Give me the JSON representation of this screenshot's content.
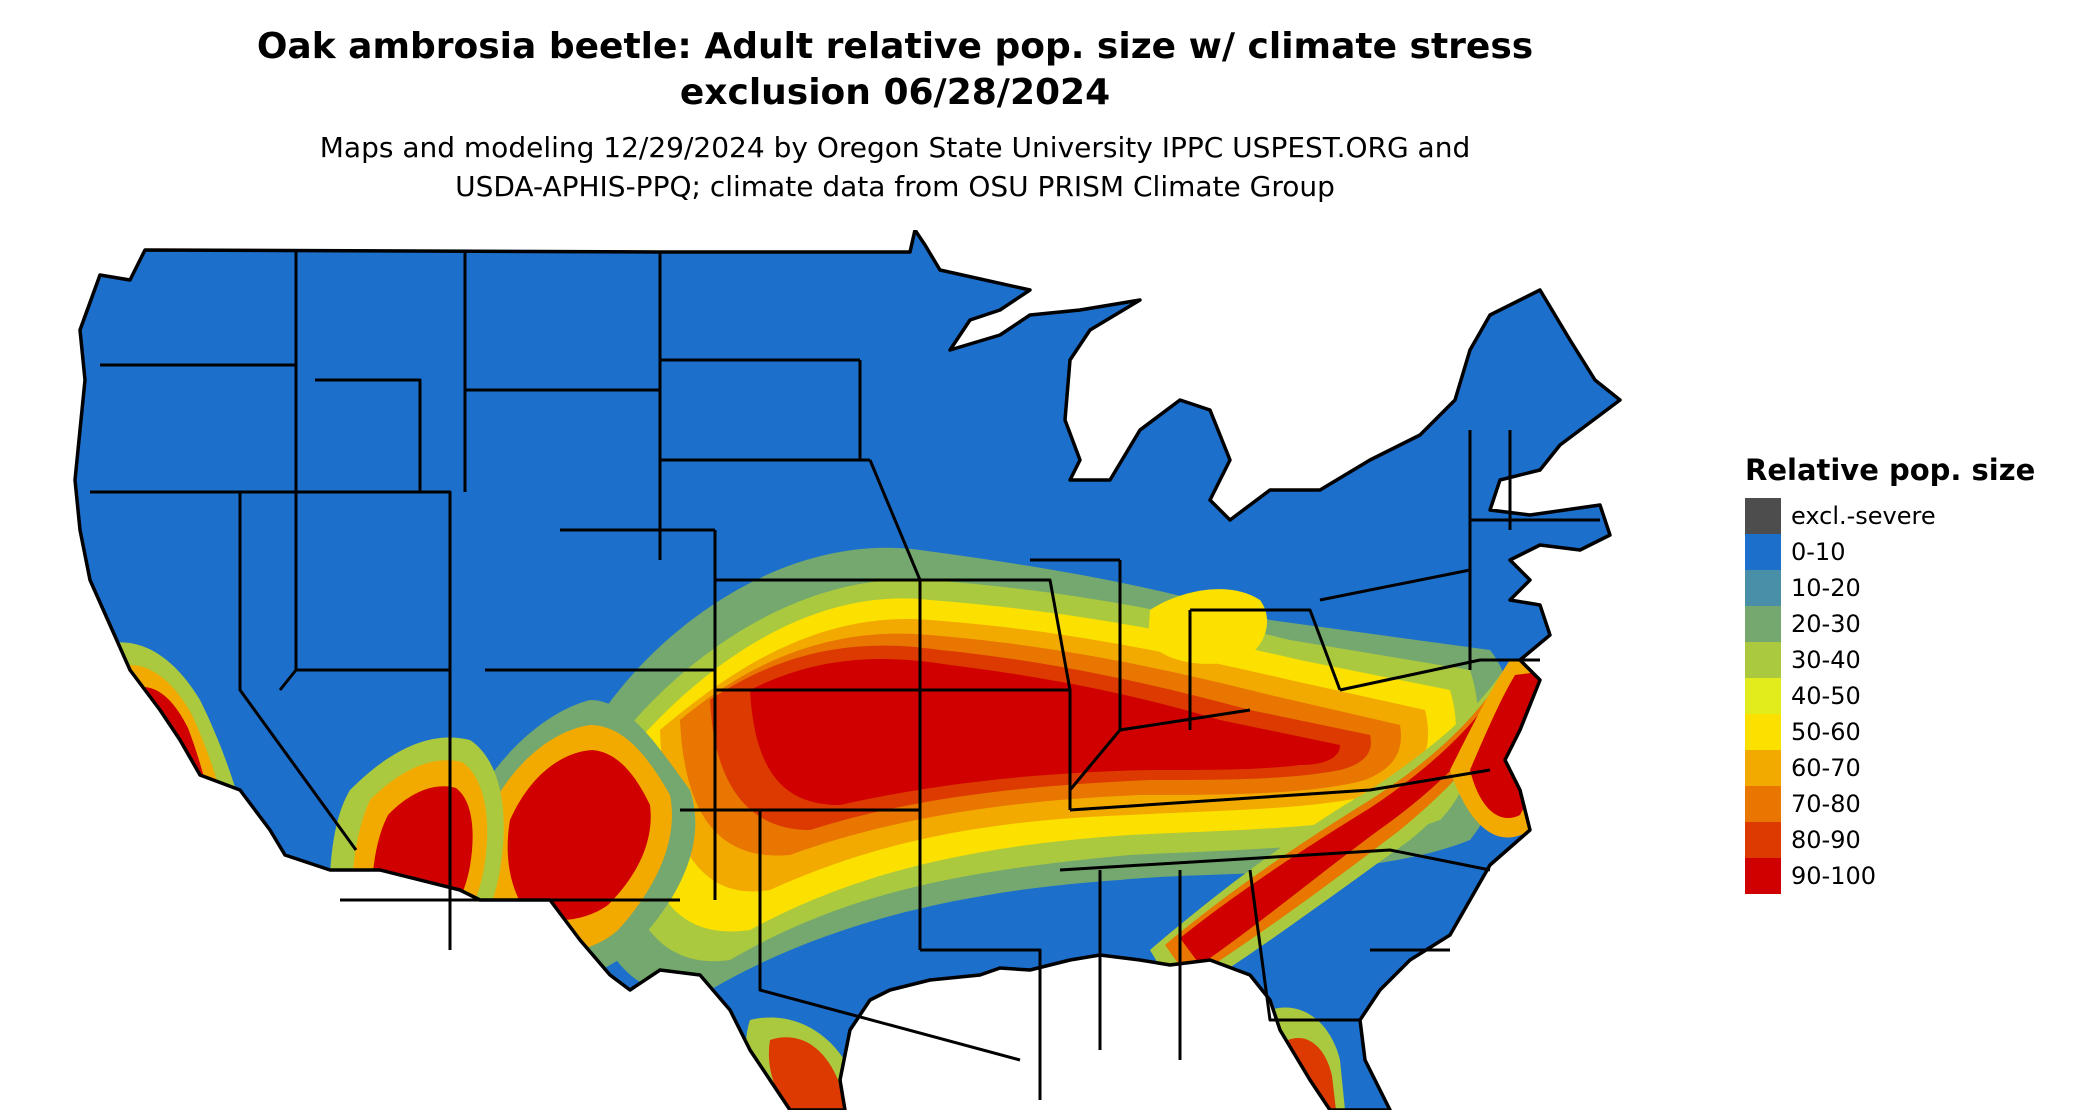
{
  "title": {
    "line1": "Oak ambrosia beetle: Adult relative pop. size w/ climate stress",
    "line2": "exclusion 06/28/2024"
  },
  "subtitle": {
    "line1": "Maps and modeling 12/29/2024 by Oregon State University IPPC USPEST.ORG and",
    "line2": "USDA-APHIS-PPQ; climate data from OSU PRISM Climate Group"
  },
  "legend": {
    "title": "Relative pop. size",
    "items": [
      {
        "label": "excl.-severe",
        "color": "#4d4d4d"
      },
      {
        "label": "0-10",
        "color": "#1c6fcb"
      },
      {
        "label": "10-20",
        "color": "#4a8fa8"
      },
      {
        "label": "20-30",
        "color": "#74a86e"
      },
      {
        "label": "30-40",
        "color": "#aac93e"
      },
      {
        "label": "40-50",
        "color": "#e2ec1c"
      },
      {
        "label": "50-60",
        "color": "#fbe000"
      },
      {
        "label": "60-70",
        "color": "#f3aa00"
      },
      {
        "label": "70-80",
        "color": "#e87600"
      },
      {
        "label": "80-90",
        "color": "#dc3a00"
      },
      {
        "label": "90-100",
        "color": "#d00000"
      }
    ]
  },
  "map": {
    "region": "contiguous-united-states",
    "background_color": "#1c6fcb",
    "border_color": "#000000"
  }
}
